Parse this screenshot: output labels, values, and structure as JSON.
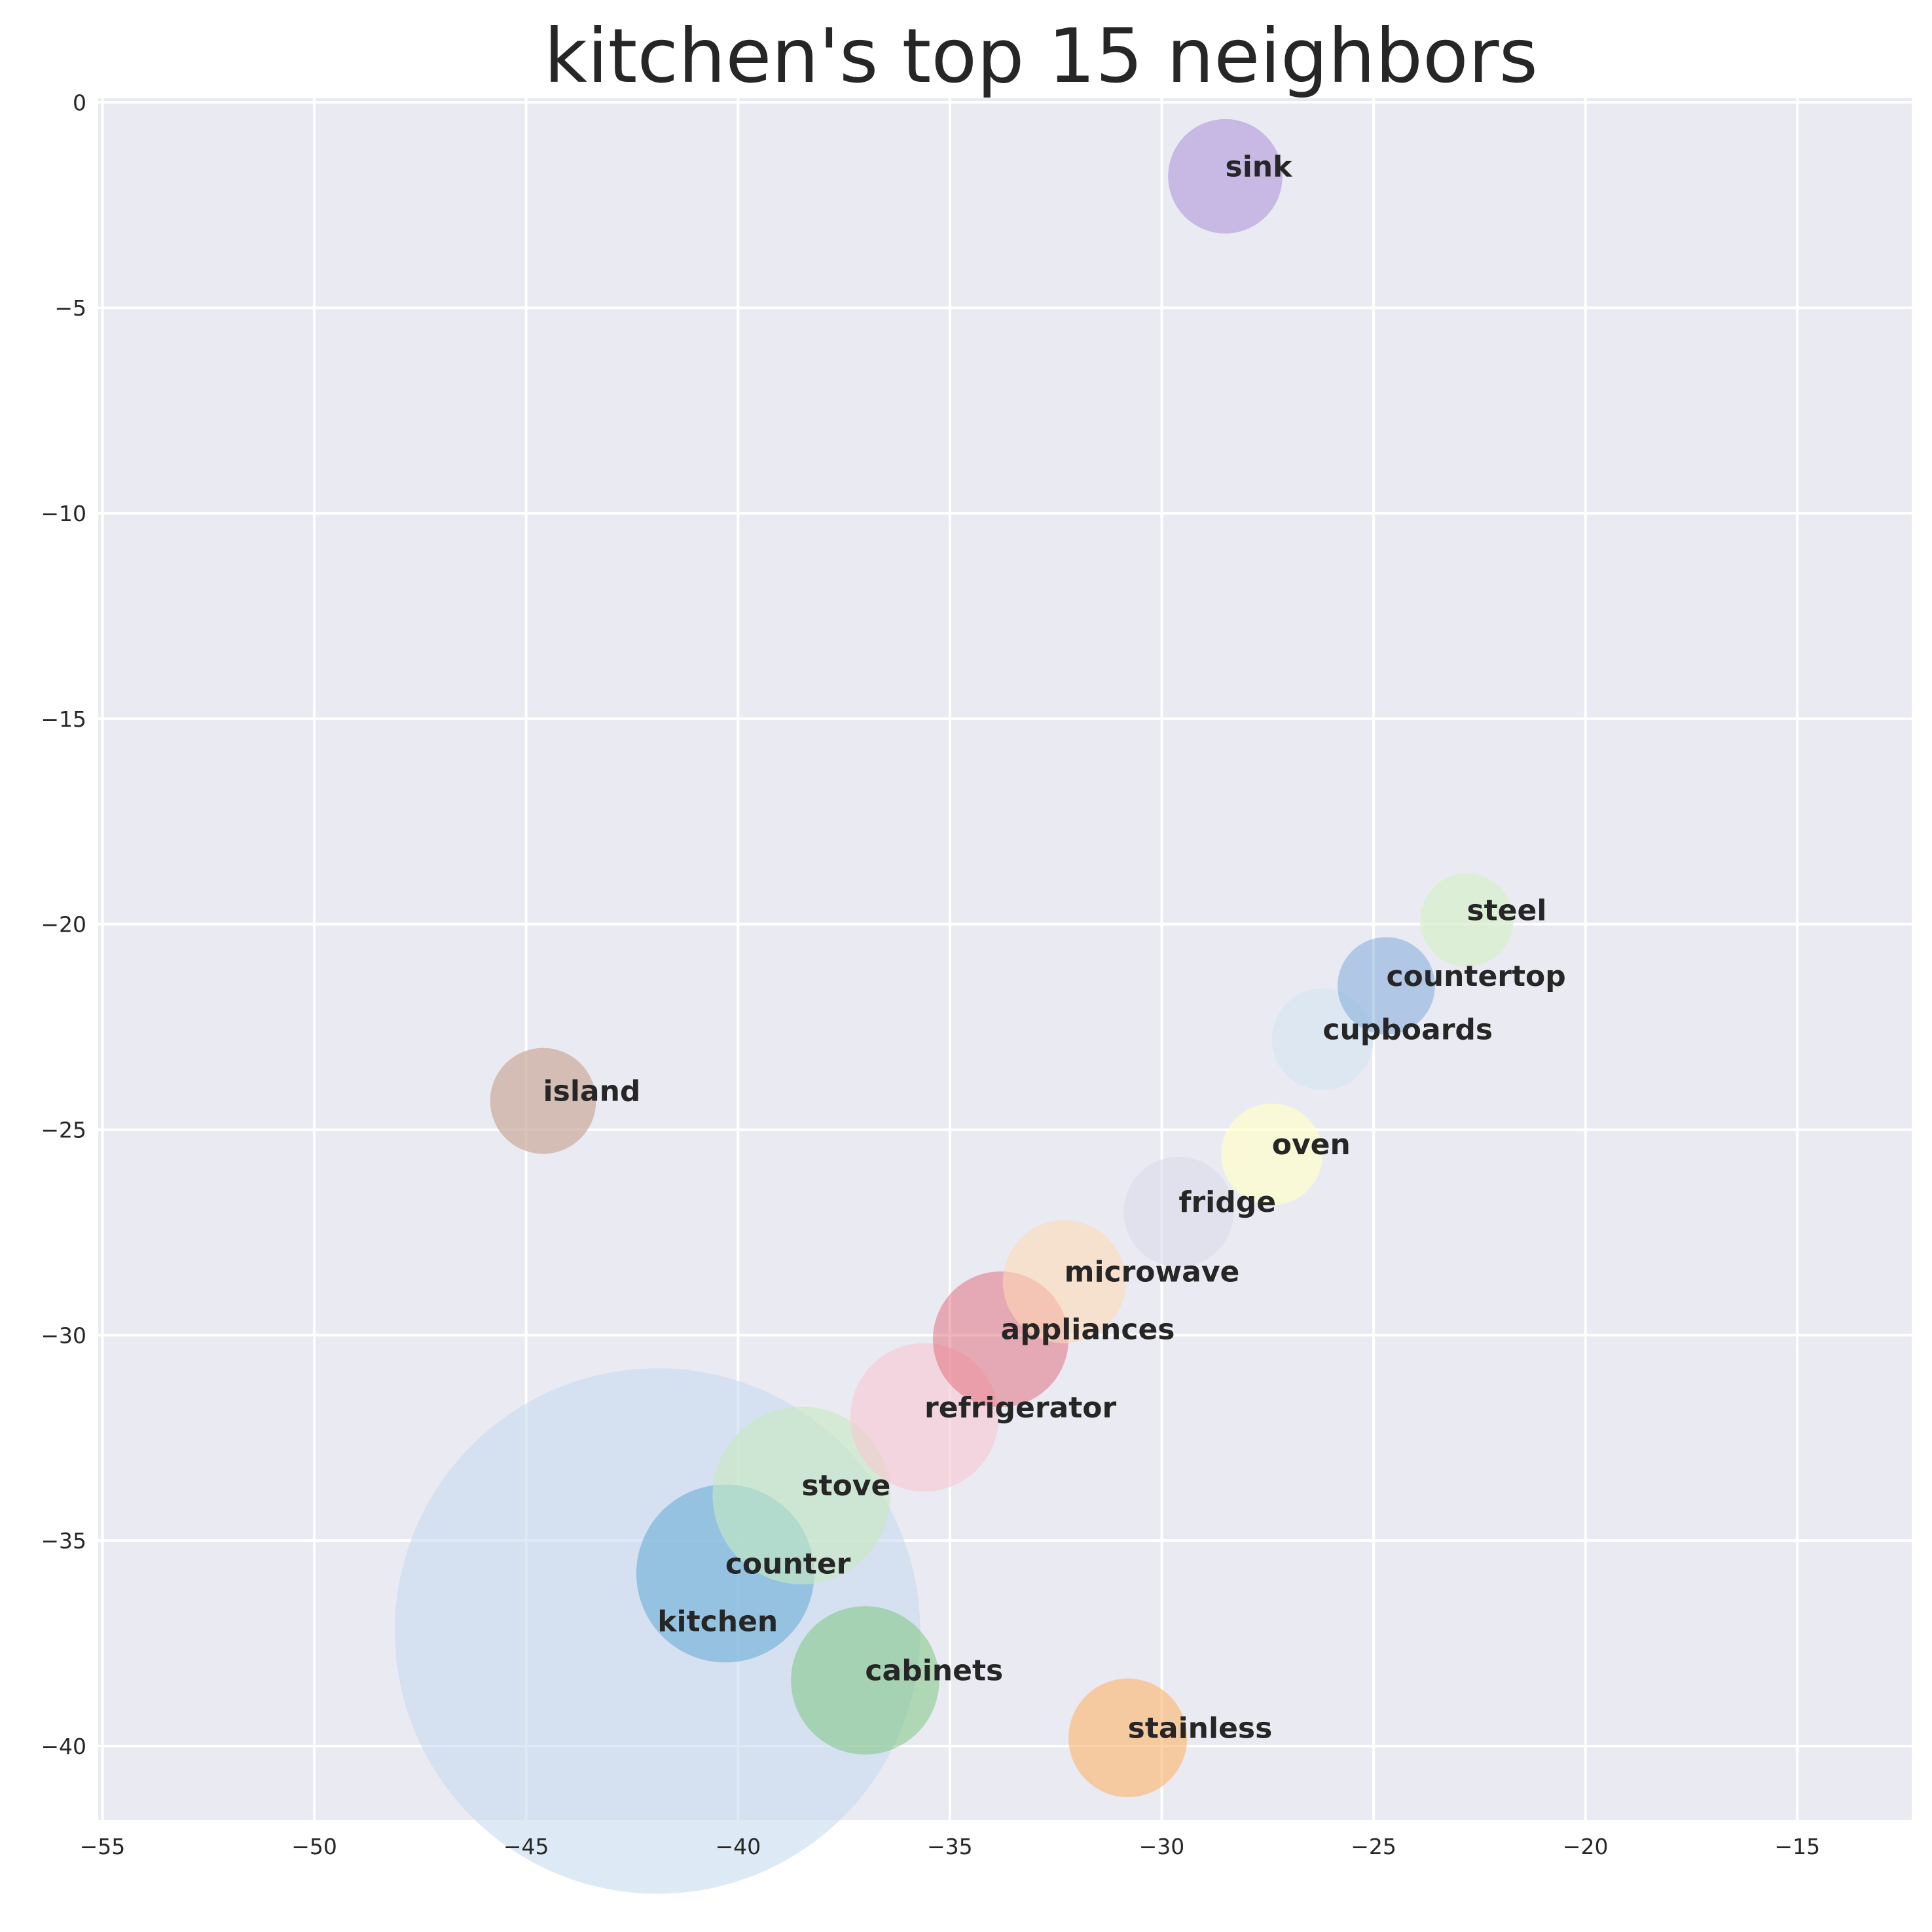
{
  "chart_data": {
    "type": "scatter",
    "title": "kitchen's top 15 neighbors",
    "xlabel": "",
    "ylabel": "",
    "xlim": [
      -55.1,
      -12.3
    ],
    "ylim": [
      -41.8,
      0.1
    ],
    "xticks": [
      -55,
      -50,
      -45,
      -40,
      -35,
      -30,
      -25,
      -20,
      -15
    ],
    "yticks": [
      0,
      -5,
      -10,
      -15,
      -20,
      -25,
      -30,
      -35,
      -40
    ],
    "xtick_labels": [
      "−55",
      "−50",
      "−45",
      "−40",
      "−35",
      "−30",
      "−25",
      "−20",
      "−15"
    ],
    "ytick_labels": [
      "0",
      "−5",
      "−10",
      "−15",
      "−20",
      "−25",
      "−30",
      "−35",
      "−40"
    ],
    "grid": true,
    "background": "#eaeaf2",
    "points": [
      {
        "label": "kitchen",
        "x": -41.9,
        "y": -37.2,
        "r": 6.2,
        "color": "#c6dbef",
        "opacity": 0.6
      },
      {
        "label": "counter",
        "x": -40.3,
        "y": -35.8,
        "r": 2.1,
        "color": "#6baed6",
        "opacity": 0.6
      },
      {
        "label": "stove",
        "x": -38.5,
        "y": -33.9,
        "r": 2.1,
        "color": "#c7e9c0",
        "opacity": 0.6
      },
      {
        "label": "refrigerator",
        "x": -35.6,
        "y": -32.0,
        "r": 1.75,
        "color": "#f7c6d0",
        "opacity": 0.6
      },
      {
        "label": "appliances",
        "x": -33.8,
        "y": -30.1,
        "r": 1.6,
        "color": "#e05a6a",
        "opacity": 0.45
      },
      {
        "label": "microwave",
        "x": -32.3,
        "y": -28.7,
        "r": 1.45,
        "color": "#fdd9b5",
        "opacity": 0.6
      },
      {
        "label": "fridge",
        "x": -29.6,
        "y": -27.0,
        "r": 1.3,
        "color": "#dadaeb",
        "opacity": 0.6
      },
      {
        "label": "oven",
        "x": -27.4,
        "y": -25.6,
        "r": 1.2,
        "color": "#ffffcc",
        "opacity": 0.7
      },
      {
        "label": "cupboards",
        "x": -26.2,
        "y": -22.8,
        "r": 1.2,
        "color": "#d6e6f2",
        "opacity": 0.7
      },
      {
        "label": "countertop",
        "x": -24.7,
        "y": -21.5,
        "r": 1.15,
        "color": "#6a9fd4",
        "opacity": 0.45
      },
      {
        "label": "steel",
        "x": -22.8,
        "y": -19.9,
        "r": 1.1,
        "color": "#d9efcf",
        "opacity": 0.8
      },
      {
        "label": "island",
        "x": -44.6,
        "y": -24.3,
        "r": 1.25,
        "color": "#c9a99a",
        "opacity": 0.7
      },
      {
        "label": "sink",
        "x": -28.5,
        "y": -1.8,
        "r": 1.35,
        "color": "#b39ddb",
        "opacity": 0.65
      },
      {
        "label": "cabinets",
        "x": -37.0,
        "y": -38.4,
        "r": 1.75,
        "color": "#74c476",
        "opacity": 0.5
      },
      {
        "label": "stainless",
        "x": -30.8,
        "y": -39.8,
        "r": 1.4,
        "color": "#fdb46b",
        "opacity": 0.6
      }
    ]
  }
}
